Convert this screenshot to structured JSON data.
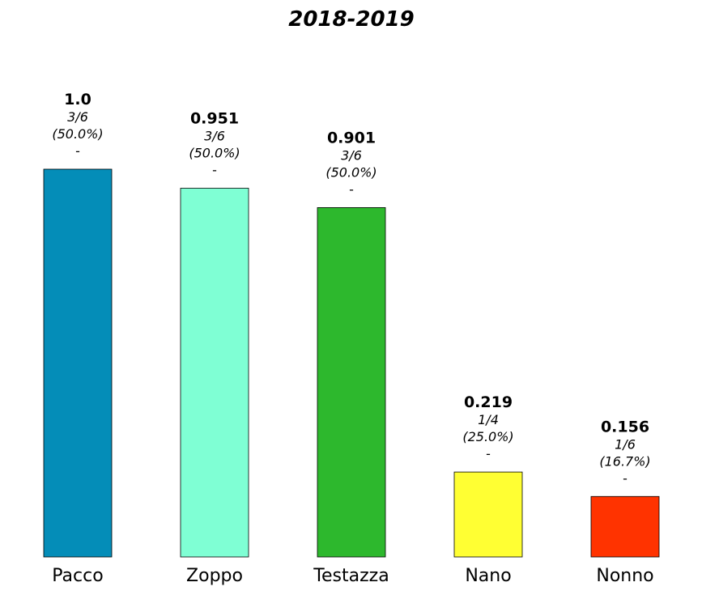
{
  "chart_data": {
    "type": "bar",
    "title": "2018-2019",
    "xlabel": "",
    "ylabel": "",
    "ylim": [
      0,
      1.0
    ],
    "grid": false,
    "categories": [
      "Pacco",
      "Zoppo",
      "Testazza",
      "Nano",
      "Nonno"
    ],
    "values": [
      1.0,
      0.951,
      0.901,
      0.219,
      0.156
    ],
    "value_labels": [
      "1.0",
      "0.951",
      "0.901",
      "0.219",
      "0.156"
    ],
    "fraction_labels": [
      "3/6",
      "3/6",
      "3/6",
      "1/4",
      "1/6"
    ],
    "percent_labels": [
      "(50.0%)",
      "(50.0%)",
      "(50.0%)",
      "(25.0%)",
      "(16.7%)"
    ],
    "extra_labels": [
      "-",
      "-",
      "-",
      "-",
      "-"
    ],
    "colors": [
      "#048db8",
      "#7fffd4",
      "#2db82d",
      "#ffff33",
      "#ff3300"
    ]
  }
}
